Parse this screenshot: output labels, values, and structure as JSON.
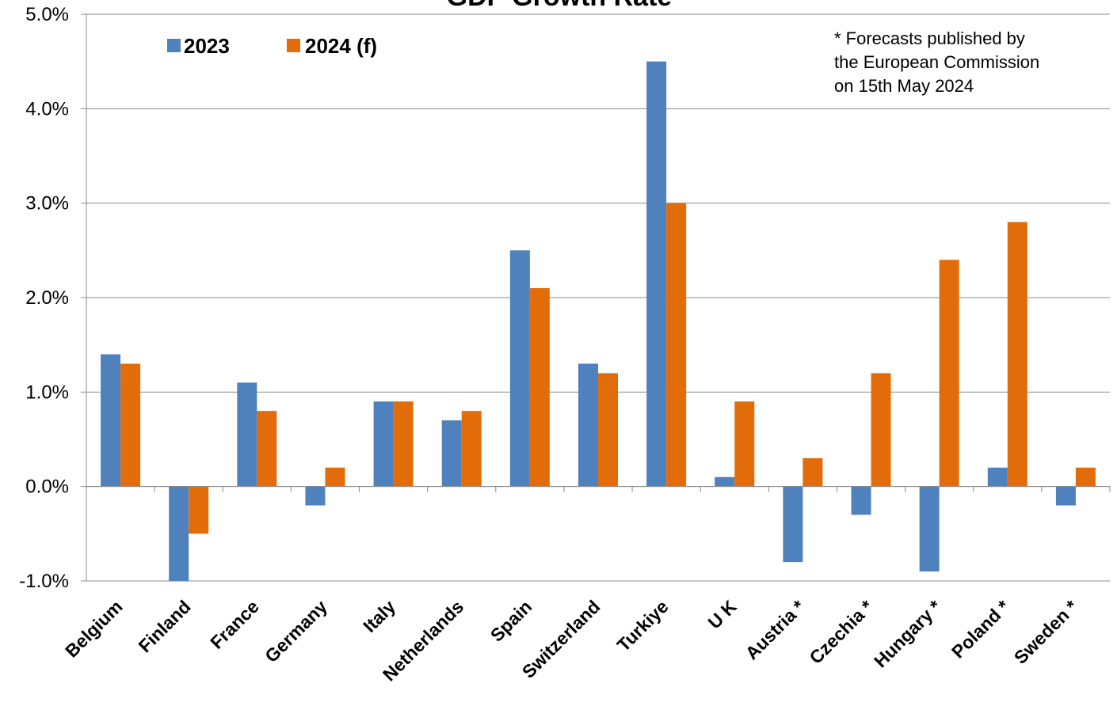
{
  "chart_data": {
    "type": "bar",
    "title": "GDP Growth Rate",
    "xlabel": "",
    "ylabel": "",
    "ylim": [
      -1.0,
      5.0
    ],
    "yticks": [
      "-1.0%",
      "0.0%",
      "1.0%",
      "2.0%",
      "3.0%",
      "4.0%",
      "5.0%"
    ],
    "ytick_values": [
      -1,
      0,
      1,
      2,
      3,
      4,
      5
    ],
    "grid": true,
    "legend_position": "top-left",
    "categories": [
      "Belgium",
      "Finland",
      "France",
      "Germany",
      "Italy",
      "Netherlands",
      "Spain",
      "Switzerland",
      "Turkiye",
      "U K",
      "Austria *",
      "Czechia *",
      "Hungary *",
      "Poland *",
      "Sweden *"
    ],
    "series": [
      {
        "name": "2023",
        "color": "#4F81BD",
        "values": [
          1.4,
          -1.0,
          1.1,
          -0.2,
          0.9,
          0.7,
          2.5,
          1.3,
          4.5,
          0.1,
          -0.8,
          -0.3,
          -0.9,
          0.2,
          -0.2
        ]
      },
      {
        "name": "2024 (f)",
        "color": "#E36C0A",
        "values": [
          1.3,
          -0.5,
          0.8,
          0.2,
          0.9,
          0.8,
          2.1,
          1.2,
          3.0,
          0.9,
          0.3,
          1.2,
          2.4,
          2.8,
          0.2
        ]
      }
    ],
    "annotation": [
      "* Forecasts published by",
      "the European Commission",
      "on 15th May 2024"
    ]
  }
}
